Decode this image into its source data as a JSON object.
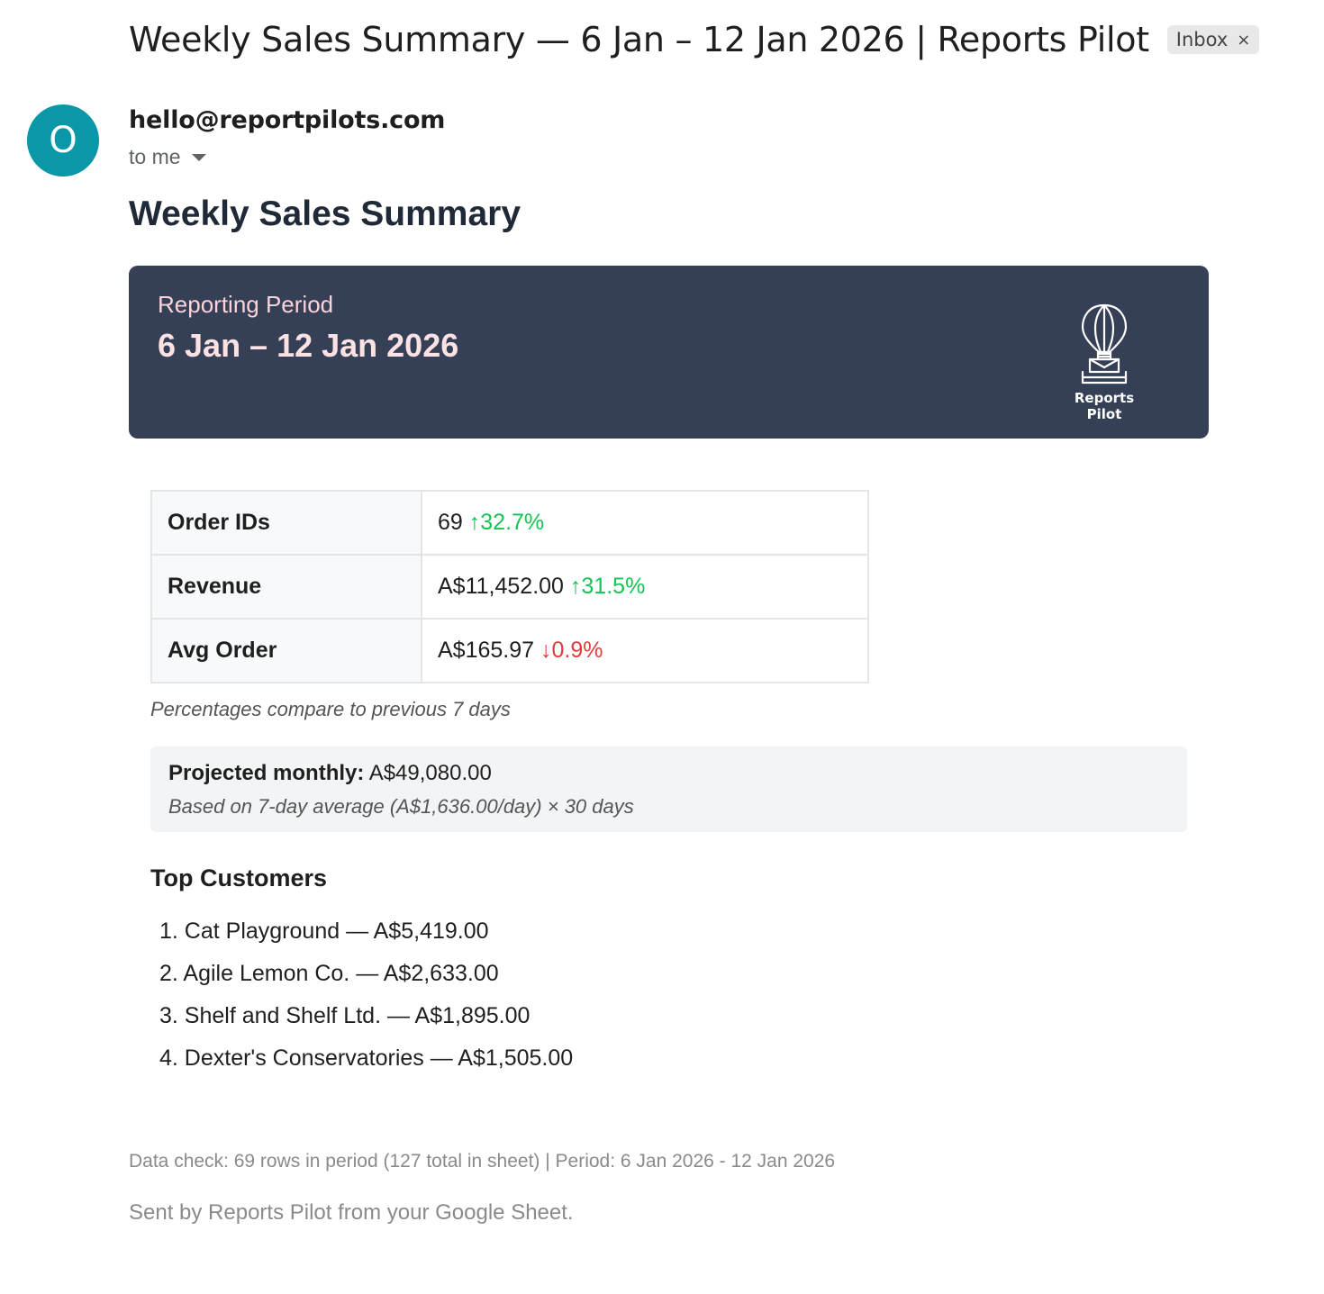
{
  "email": {
    "subject": "Weekly Sales Summary — 6 Jan – 12 Jan 2026 | Reports Pilot",
    "label": "Inbox",
    "label_remove": "×",
    "sender_initial": "O",
    "sender": "hello@reportpilots.com",
    "recipients": "to me"
  },
  "report": {
    "heading": "Weekly Sales Summary",
    "banner": {
      "period_label": "Reporting Period",
      "period_value": "6 Jan – 12 Jan 2026",
      "logo_text": "Reports Pilot",
      "logo_icon": "hot-air-balloon-mail-icon"
    },
    "stats": [
      {
        "label": "Order IDs",
        "value": "69",
        "change": "↑32.7%",
        "direction": "up"
      },
      {
        "label": "Revenue",
        "value": "A$11,452.00",
        "change": "↑31.5%",
        "direction": "up"
      },
      {
        "label": "Avg Order",
        "value": "A$165.97",
        "change": "↓0.9%",
        "direction": "down"
      }
    ],
    "comparison_note": "Percentages compare to previous 7 days",
    "projection": {
      "label": "Projected monthly:",
      "value": "A$49,080.00",
      "basis": "Based on 7-day average (A$1,636.00/day) × 30 days"
    },
    "top_customers_title": "Top Customers",
    "top_customers": [
      "1. Cat Playground — A$5,419.00",
      "2. Agile Lemon Co. — A$2,633.00",
      "3. Shelf and Shelf Ltd. — A$1,895.00",
      "4. Dexter's Conservatories — A$1,505.00"
    ],
    "data_check": "Data check: 69 rows in period (127 total in sheet) | Period: 6 Jan 2026 - 12 Jan 2026",
    "sent_by": "Sent by Reports Pilot from your Google Sheet."
  },
  "colors": {
    "avatar": "#0a97a7",
    "banner": "#353f55",
    "positive": "#16c454",
    "negative": "#e23b3b"
  }
}
